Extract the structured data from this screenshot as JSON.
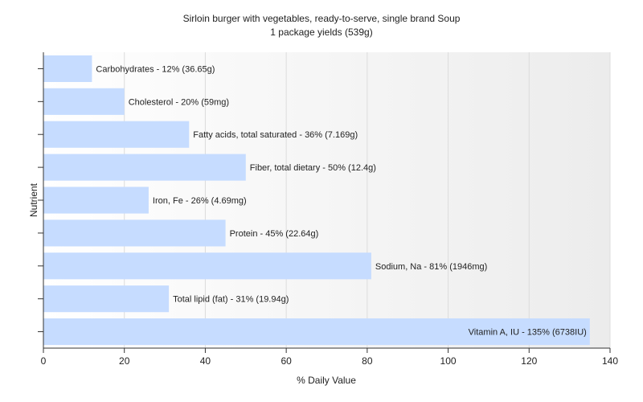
{
  "chart_data": {
    "type": "bar",
    "orientation": "horizontal",
    "title": "Sirloin burger with vegetables, ready-to-serve, single brand Soup",
    "subtitle": "1 package yields (539g)",
    "xlabel": "% Daily Value",
    "ylabel": "Nutrient",
    "xlim": [
      0,
      140
    ],
    "x_ticks": [
      0,
      20,
      40,
      60,
      80,
      100,
      120,
      140
    ],
    "grid": true,
    "legend": "none",
    "bar_color": "#c6dcff",
    "categories": [
      "Carbohydrates",
      "Cholesterol",
      "Fatty acids, total saturated",
      "Fiber, total dietary",
      "Iron, Fe",
      "Protein",
      "Sodium, Na",
      "Total lipid (fat)",
      "Vitamin A, IU"
    ],
    "values": [
      12,
      20,
      36,
      50,
      26,
      45,
      81,
      31,
      135
    ],
    "data_labels": [
      "Carbohydrates - 12% (36.65g)",
      "Cholesterol - 20% (59mg)",
      "Fatty acids, total saturated - 36% (7.169g)",
      "Fiber, total dietary - 50% (12.4g)",
      "Iron, Fe - 26% (4.69mg)",
      "Protein - 45% (22.64g)",
      "Sodium, Na - 81% (1946mg)",
      "Total lipid (fat) - 31% (19.94g)",
      "Vitamin A, IU - 135% (6738IU)"
    ]
  }
}
